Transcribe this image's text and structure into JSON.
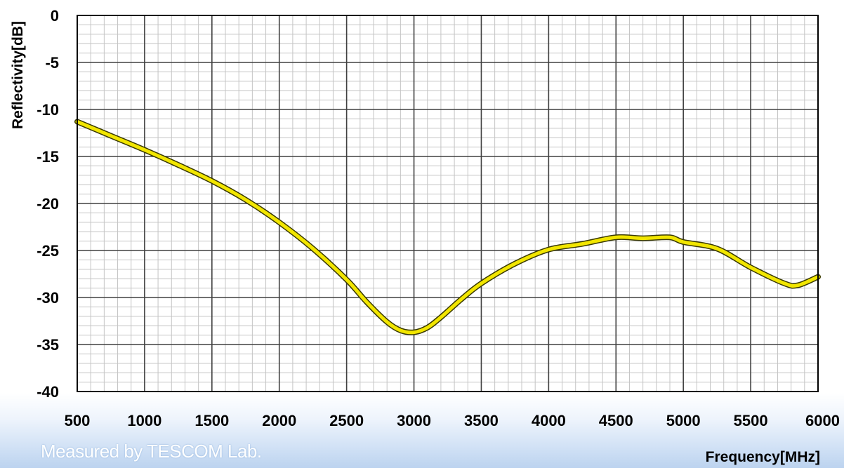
{
  "chart_data": {
    "type": "line",
    "xlabel": "Frequency[MHz]",
    "ylabel": "Reflectivity[dB]",
    "xlim": [
      500,
      6000
    ],
    "ylim": [
      -40,
      0
    ],
    "x_ticks": [
      500,
      1000,
      1500,
      2000,
      2500,
      3000,
      3500,
      4000,
      4500,
      5000,
      5500,
      6000
    ],
    "y_ticks": [
      0,
      -5,
      -10,
      -15,
      -20,
      -25,
      -30,
      -35,
      -40
    ],
    "x_minor_step": 100,
    "y_minor_step": 1,
    "grid": true,
    "line_color": "#f2e600",
    "series": [
      {
        "x": [
          500,
          750,
          1000,
          1250,
          1500,
          1750,
          2000,
          2250,
          2500,
          2650,
          2800,
          2900,
          3000,
          3100,
          3200,
          3350,
          3500,
          3750,
          4000,
          4250,
          4500,
          4700,
          4900,
          5000,
          5250,
          5500,
          5750,
          5850,
          6000
        ],
        "y": [
          -11.3,
          -12.8,
          -14.3,
          -15.9,
          -17.6,
          -19.6,
          -22,
          -24.8,
          -28.1,
          -30.5,
          -32.6,
          -33.5,
          -33.7,
          -33.2,
          -32.1,
          -30.2,
          -28.5,
          -26.4,
          -24.9,
          -24.3,
          -23.6,
          -23.7,
          -23.6,
          -24.1,
          -24.8,
          -26.8,
          -28.5,
          -28.7,
          -27.8
        ]
      }
    ]
  },
  "footer": {
    "note": "Measured by TESCOM Lab."
  }
}
